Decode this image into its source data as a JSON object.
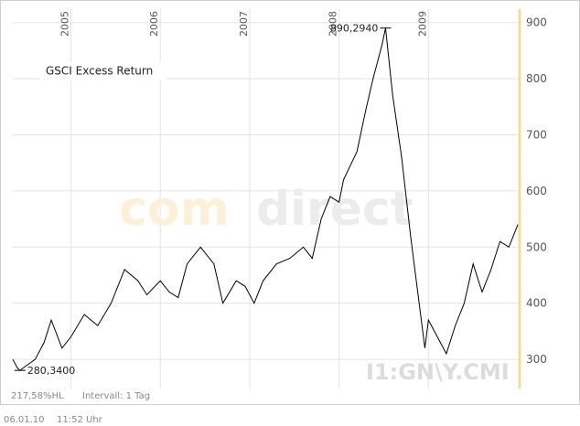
{
  "chart_data": {
    "type": "line",
    "x": [
      2004.35,
      2004.4,
      2004.43,
      2004.6,
      2004.7,
      2004.78,
      2004.9,
      2005.0,
      2005.15,
      2005.3,
      2005.45,
      2005.6,
      2005.75,
      2005.85,
      2006.0,
      2006.1,
      2006.2,
      2006.3,
      2006.45,
      2006.6,
      2006.7,
      2006.85,
      2006.95,
      2007.05,
      2007.15,
      2007.3,
      2007.45,
      2007.6,
      2007.7,
      2007.8,
      2007.9,
      2008.0,
      2008.05,
      2008.2,
      2008.3,
      2008.38,
      2008.48,
      2008.52,
      2008.6,
      2008.7,
      2008.8,
      2008.88,
      2008.96,
      2009.0,
      2009.1,
      2009.2,
      2009.3,
      2009.4,
      2009.5,
      2009.6,
      2009.7,
      2009.8,
      2009.9,
      2010.0
    ],
    "series": [
      {
        "name": "GSCI Excess Return",
        "color": "#000000",
        "values": [
          300,
          285,
          280.34,
          300,
          330,
          370,
          320,
          340,
          380,
          360,
          400,
          460,
          440,
          415,
          440,
          420,
          410,
          470,
          500,
          470,
          400,
          440,
          430,
          400,
          440,
          470,
          480,
          500,
          480,
          550,
          590,
          580,
          620,
          670,
          745,
          800,
          860,
          890.294,
          770,
          660,
          520,
          420,
          320,
          370,
          340,
          310,
          360,
          400,
          470,
          420,
          460,
          510,
          500,
          540
        ]
      }
    ],
    "xlim": [
      2004.35,
      2010.02
    ],
    "xticks": [
      2005,
      2006,
      2007,
      2008,
      2009
    ],
    "ylim": [
      248,
      924
    ],
    "yticks": [
      300,
      400,
      500,
      600,
      700,
      800,
      900
    ],
    "grid": true,
    "axis_color": "#f5dc96",
    "annotations": [
      {
        "label": "890,2940",
        "x": 2008.52,
        "value": 890.294
      },
      {
        "label": "280,3400",
        "x": 2004.43,
        "value": 280.34
      }
    ],
    "watermark": [
      "com",
      "direct"
    ],
    "symbol": "I1:GN\\Y.CMI",
    "footer": {
      "stat": "217,58%HL",
      "interval": "Intervall: 1 Tag",
      "date": "06.01.10",
      "time": "11:52 Uhr"
    }
  }
}
